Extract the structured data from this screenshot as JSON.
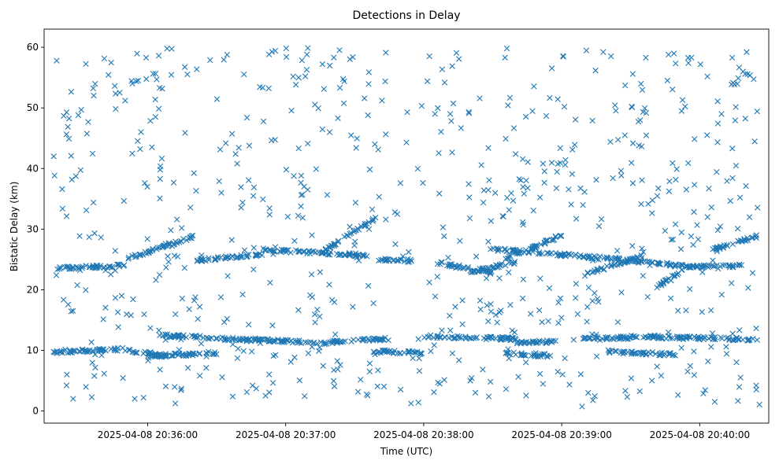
{
  "chart_data": {
    "type": "scatter",
    "title": "Detections in Delay",
    "xlabel": "Time (UTC)",
    "ylabel": "Bistatic Delay (km)",
    "x_unit": "UTC time",
    "xlim": [
      "2025-04-08 20:35:15",
      "2025-04-08 20:40:30"
    ],
    "ylim": [
      -2,
      63
    ],
    "x_ticks": [
      "2025-04-08 20:36:00",
      "2025-04-08 20:37:00",
      "2025-04-08 20:38:00",
      "2025-04-08 20:39:00",
      "2025-04-08 20:40:00"
    ],
    "y_ticks": [
      0,
      10,
      20,
      30,
      40,
      50,
      60
    ],
    "grid": false,
    "legend": "none",
    "marker": "x",
    "color": "#1f77b4",
    "time_range": [
      "2025-04-08 20:35:19",
      "2025-04-08 20:40:27"
    ],
    "tracks": [
      {
        "start": [
          "2025-04-08 20:35:19",
          9.7
        ],
        "end": [
          "2025-04-08 20:35:50",
          10.2
        ]
      },
      {
        "start": [
          "2025-04-08 20:35:50",
          10.0
        ],
        "end": [
          "2025-04-08 20:36:10",
          9.1
        ]
      },
      {
        "start": [
          "2025-04-08 20:36:00",
          9.0
        ],
        "end": [
          "2025-04-08 20:36:30",
          9.6
        ]
      },
      {
        "start": [
          "2025-04-08 20:36:05",
          12.5
        ],
        "end": [
          "2025-04-08 20:36:45",
          11.7
        ]
      },
      {
        "start": [
          "2025-04-08 20:36:45",
          11.8
        ],
        "end": [
          "2025-04-08 20:37:20",
          11.2
        ]
      },
      {
        "start": [
          "2025-04-08 20:37:20",
          11.4
        ],
        "end": [
          "2025-04-08 20:37:45",
          11.9
        ]
      },
      {
        "start": [
          "2025-04-08 20:37:38",
          9.8
        ],
        "end": [
          "2025-04-08 20:38:00",
          9.6
        ]
      },
      {
        "start": [
          "2025-04-08 20:38:00",
          12.3
        ],
        "end": [
          "2025-04-08 20:38:40",
          11.9
        ]
      },
      {
        "start": [
          "2025-04-08 20:38:40",
          11.2
        ],
        "end": [
          "2025-04-08 20:39:00",
          11.5
        ]
      },
      {
        "start": [
          "2025-04-08 20:38:35",
          9.5
        ],
        "end": [
          "2025-04-08 20:38:55",
          9.1
        ]
      },
      {
        "start": [
          "2025-04-08 20:39:05",
          11.9
        ],
        "end": [
          "2025-04-08 20:39:30",
          12.1
        ]
      },
      {
        "start": [
          "2025-04-08 20:39:30",
          12.3
        ],
        "end": [
          "2025-04-08 20:40:25",
          11.8
        ]
      },
      {
        "start": [
          "2025-04-08 20:39:20",
          9.8
        ],
        "end": [
          "2025-04-08 20:39:50",
          9.3
        ]
      },
      {
        "start": [
          "2025-04-08 20:35:20",
          23.5
        ],
        "end": [
          "2025-04-08 20:35:50",
          24.0
        ]
      },
      {
        "start": [
          "2025-04-08 20:35:50",
          25.0
        ],
        "end": [
          "2025-04-08 20:36:20",
          28.8
        ]
      },
      {
        "start": [
          "2025-04-08 20:36:20",
          24.8
        ],
        "end": [
          "2025-04-08 20:36:50",
          25.8
        ]
      },
      {
        "start": [
          "2025-04-08 20:36:50",
          26.6
        ],
        "end": [
          "2025-04-08 20:37:35",
          25.7
        ]
      },
      {
        "start": [
          "2025-04-08 20:37:15",
          26.0
        ],
        "end": [
          "2025-04-08 20:37:40",
          32.0
        ]
      },
      {
        "start": [
          "2025-04-08 20:37:40",
          25.0
        ],
        "end": [
          "2025-04-08 20:37:55",
          24.8
        ]
      },
      {
        "start": [
          "2025-04-08 20:38:05",
          24.5
        ],
        "end": [
          "2025-04-08 20:38:30",
          22.8
        ]
      },
      {
        "start": [
          "2025-04-08 20:38:20",
          23.0
        ],
        "end": [
          "2025-04-08 20:38:40",
          24.5
        ]
      },
      {
        "start": [
          "2025-04-08 20:38:35",
          25.0
        ],
        "end": [
          "2025-04-08 20:39:00",
          29.0
        ]
      },
      {
        "start": [
          "2025-04-08 20:38:30",
          26.7
        ],
        "end": [
          "2025-04-08 20:39:25",
          25.0
        ]
      },
      {
        "start": [
          "2025-04-08 20:39:25",
          25.0
        ],
        "end": [
          "2025-04-08 20:39:55",
          23.8
        ]
      },
      {
        "start": [
          "2025-04-08 20:39:10",
          22.5
        ],
        "end": [
          "2025-04-08 20:39:35",
          25.5
        ]
      },
      {
        "start": [
          "2025-04-08 20:39:55",
          23.8
        ],
        "end": [
          "2025-04-08 20:40:20",
          24.0
        ]
      },
      {
        "start": [
          "2025-04-08 20:39:40",
          20.0
        ],
        "end": [
          "2025-04-08 20:39:55",
          24.0
        ]
      },
      {
        "start": [
          "2025-04-08 20:40:05",
          26.5
        ],
        "end": [
          "2025-04-08 20:40:25",
          28.8
        ]
      }
    ],
    "background_clutter": {
      "delay_range": [
        0.5,
        60
      ],
      "time_range": [
        "2025-04-08 20:35:19",
        "2025-04-08 20:40:27"
      ]
    }
  }
}
